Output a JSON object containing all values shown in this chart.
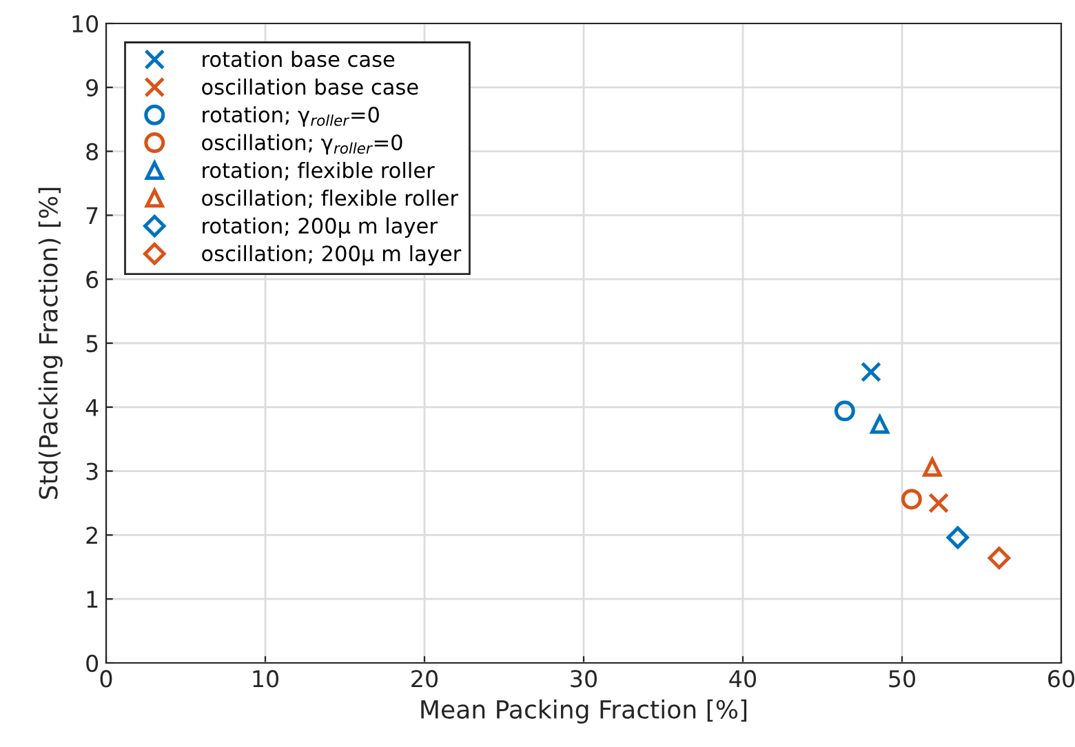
{
  "chart_data": {
    "type": "scatter",
    "xlabel": "Mean Packing Fraction [%]",
    "ylabel": "Std(Packing Fraction) [%]",
    "xlim": [
      0,
      60
    ],
    "ylim": [
      0,
      10
    ],
    "xticks": [
      0,
      10,
      20,
      30,
      40,
      50,
      60
    ],
    "yticks": [
      0,
      1,
      2,
      3,
      4,
      5,
      6,
      7,
      8,
      9,
      10
    ],
    "grid": true,
    "legend": "top left",
    "series": [
      {
        "name": "rotation base case",
        "color": "#0072bd",
        "marker": "cross",
        "x": [
          48.05
        ],
        "values": [
          4.55
        ]
      },
      {
        "name": "oscillation base case",
        "color": "#d95319",
        "marker": "cross",
        "x": [
          52.3
        ],
        "values": [
          2.5
        ]
      },
      {
        "name": "rotation; γ$_{roller}$=0",
        "color": "#0072bd",
        "marker": "circle",
        "x": [
          46.4
        ],
        "values": [
          3.94
        ]
      },
      {
        "name": "oscillation; γ$_{roller}$=0",
        "color": "#d95319",
        "marker": "circle",
        "x": [
          50.6
        ],
        "values": [
          2.56
        ]
      },
      {
        "name": "rotation; flexible roller",
        "color": "#0072bd",
        "marker": "triangle",
        "x": [
          48.6
        ],
        "values": [
          3.73
        ]
      },
      {
        "name": "oscillation; flexible roller",
        "color": "#d95319",
        "marker": "triangle",
        "x": [
          51.9
        ],
        "values": [
          3.06
        ]
      },
      {
        "name": "rotation; 200μ m layer",
        "color": "#0072bd",
        "marker": "diamond",
        "x": [
          53.5
        ],
        "values": [
          1.96
        ]
      },
      {
        "name": "oscillation; 200μ m layer",
        "color": "#d95319",
        "marker": "diamond",
        "x": [
          56.1
        ],
        "values": [
          1.64
        ]
      }
    ]
  }
}
